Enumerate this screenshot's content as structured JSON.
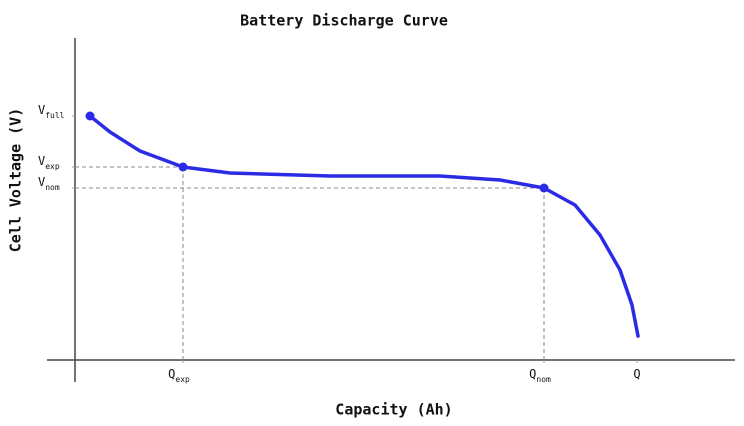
{
  "chart_data": {
    "type": "line",
    "title": "Battery Discharge Curve",
    "x_label": "Capacity (Ah)",
    "y_label": "Cell Voltage (V)",
    "x": [
      0.15,
      0.35,
      0.65,
      1.08,
      1.55,
      2.55,
      3.65,
      4.25,
      4.69,
      5.0,
      5.25,
      5.45,
      5.57,
      5.63
    ],
    "series": [
      {
        "color": "#2b2be6",
        "values": [
          2.44,
          2.28,
          2.09,
          1.93,
          1.87,
          1.84,
          1.84,
          1.8,
          1.72,
          1.55,
          1.25,
          0.9,
          0.55,
          0.24
        ]
      }
    ],
    "xlim": [
      0,
      6.6
    ],
    "ylim": [
      0,
      3.22
    ],
    "xticks": [
      {
        "value": 1.08,
        "label": "Q",
        "subscript": "exp"
      },
      {
        "value": 4.69,
        "label": "Q",
        "subscript": "nom"
      },
      {
        "value": 5.62,
        "label": "Q"
      }
    ],
    "yticks": [
      {
        "value": 2.44,
        "label": "V",
        "subscript": "full"
      },
      {
        "value": 1.93,
        "label": "V",
        "subscript": "exp"
      },
      {
        "value": 1.72,
        "label": "V",
        "subscript": "nom"
      }
    ]
  }
}
